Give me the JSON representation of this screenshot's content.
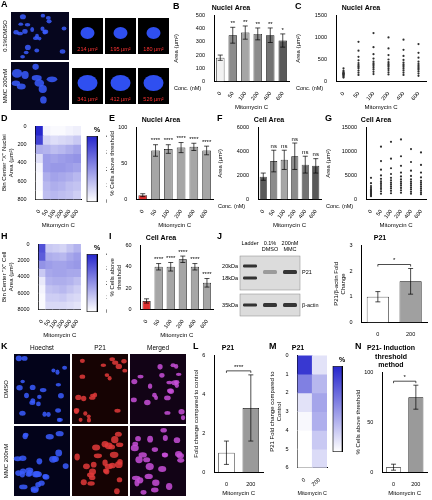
{
  "chart_data": [
    {
      "panel": "B",
      "type": "bar",
      "title": "Nuclei Area",
      "x_label": "Mitomycin C",
      "x_unit_label": "Conc. (nM)",
      "y_label": "Area (µm²)",
      "categories": [
        "0",
        "50",
        "100",
        "200",
        "400",
        "600"
      ],
      "values": [
        180,
        350,
        370,
        360,
        350,
        310
      ],
      "errors": [
        20,
        60,
        50,
        45,
        55,
        50
      ],
      "significance": [
        null,
        "**",
        "**",
        "**",
        "**",
        "*"
      ],
      "colors": [
        "#f2f2f2",
        "#8c8c8c",
        "#a6a6a6",
        "#8c8c8c",
        "#737373",
        "#595959"
      ],
      "ylim": [
        0,
        500
      ],
      "yticks": [
        0,
        100,
        200,
        300,
        400,
        500
      ],
      "grid": false
    },
    {
      "panel": "C",
      "type": "scatter",
      "title": "Nuclei Area",
      "x_label": "Mitomycin C",
      "x_unit_label": "Conc. (nM)",
      "y_label": "Area (µm²)",
      "categories": [
        "0",
        "50",
        "100",
        "200",
        "400",
        "600"
      ],
      "values": [
        [
          90,
          110,
          130,
          150,
          160,
          170,
          180,
          190,
          200,
          220,
          250,
          300
        ],
        [
          150,
          200,
          250,
          300,
          330,
          350,
          380,
          420,
          480,
          560,
          700,
          900
        ],
        [
          170,
          220,
          270,
          310,
          350,
          380,
          410,
          450,
          520,
          620,
          780,
          1100
        ],
        [
          160,
          210,
          260,
          300,
          340,
          370,
          400,
          440,
          500,
          600,
          750,
          1000
        ],
        [
          150,
          200,
          250,
          290,
          330,
          360,
          390,
          430,
          490,
          580,
          720,
          950
        ],
        [
          130,
          180,
          230,
          270,
          300,
          330,
          360,
          400,
          450,
          540,
          650,
          850
        ]
      ],
      "color": "#303030",
      "ylim": [
        0,
        1500
      ],
      "yticks": [
        0,
        500,
        1000,
        1500
      ],
      "grid": false
    },
    {
      "panel": "D",
      "type": "heatmap",
      "x_label": "Mitomycin C",
      "y_label": "Bin Center \"X\" Nuclei Area (µm²)",
      "categories": [
        "0",
        "50",
        "100",
        "200",
        "400",
        "600"
      ],
      "bins": [
        0,
        100,
        200,
        300,
        400,
        500,
        600,
        700,
        800
      ],
      "cells": [
        [
          40,
          35,
          15,
          6,
          2,
          1,
          1,
          0
        ],
        [
          2,
          8,
          14,
          18,
          18,
          15,
          13,
          12
        ],
        [
          1,
          6,
          12,
          17,
          19,
          17,
          15,
          13
        ],
        [
          1,
          7,
          13,
          18,
          19,
          16,
          14,
          12
        ],
        [
          2,
          8,
          15,
          19,
          18,
          15,
          12,
          11
        ],
        [
          3,
          10,
          17,
          20,
          17,
          13,
          11,
          9
        ]
      ],
      "ylim": [
        800,
        0
      ],
      "yticks": [
        0,
        200,
        400,
        600,
        800
      ],
      "grid": false,
      "colorbar": {
        "title": "%",
        "range": [
          0,
          40
        ],
        "ticks": [
          0,
          10,
          20,
          30,
          40
        ]
      }
    },
    {
      "panel": "E",
      "type": "bar",
      "title": "Nuclei Area",
      "x_label": "Mitomycin C",
      "y_label": "% Cells above threshold",
      "categories": [
        "0",
        "50",
        "100",
        "200",
        "400",
        "600"
      ],
      "values": [
        6,
        68,
        70,
        72,
        73,
        68
      ],
      "errors": [
        2,
        8,
        6,
        7,
        5,
        6
      ],
      "significance": [
        null,
        "****",
        "****",
        "****",
        "****",
        "****"
      ],
      "colors": [
        "#e03030",
        "#a6a6a6",
        "#a6a6a6",
        "#a6a6a6",
        "#a6a6a6",
        "#a6a6a6"
      ],
      "ylim": [
        0,
        100
      ],
      "yticks": [
        0,
        50,
        100
      ],
      "grid": false
    },
    {
      "panel": "F",
      "type": "bar",
      "title": "Cell Area",
      "x_label": "Mitomycin C",
      "x_unit_label": "Conc. (nM)",
      "y_label": "Area (µm²)",
      "categories": [
        "0",
        "50",
        "100",
        "200",
        "400",
        "600"
      ],
      "values": [
        1900,
        3200,
        3300,
        3600,
        2900,
        2800
      ],
      "errors": [
        300,
        900,
        800,
        1100,
        700,
        600
      ],
      "significance": [
        null,
        "ns",
        "ns",
        "ns",
        "ns",
        "ns"
      ],
      "colors": [
        "#595959",
        "#8c8c8c",
        "#a6a6a6",
        "#8c8c8c",
        "#737373",
        "#595959"
      ],
      "ylim": [
        0,
        6000
      ],
      "yticks": [
        0,
        2000,
        4000,
        6000
      ],
      "grid": false
    },
    {
      "panel": "G",
      "type": "scatter",
      "title": "Cell Area",
      "x_label": "Mitomycin C",
      "x_unit_label": "Conc. (nM)",
      "y_label": "Area (µm²)",
      "categories": [
        "0",
        "50",
        "100",
        "200",
        "400",
        "600"
      ],
      "values": [
        [
          700,
          900,
          1100,
          1300,
          1500,
          1700,
          1900,
          2100,
          2400,
          2800,
          3400,
          4500
        ],
        [
          1200,
          1700,
          2200,
          2600,
          3000,
          3400,
          3800,
          4300,
          5000,
          6200,
          8000,
          11000
        ],
        [
          1300,
          1800,
          2300,
          2700,
          3100,
          3500,
          4000,
          4500,
          5300,
          6500,
          8500,
          12000
        ],
        [
          1400,
          1900,
          2400,
          2900,
          3300,
          3700,
          4200,
          4800,
          5600,
          7000,
          9000,
          12500
        ],
        [
          1200,
          1600,
          2100,
          2500,
          2900,
          3300,
          3700,
          4200,
          4900,
          6000,
          7800,
          10500
        ],
        [
          1100,
          1500,
          1900,
          2300,
          2700,
          3100,
          3500,
          3900,
          4600,
          5600,
          7200,
          9800
        ]
      ],
      "color": "#303030",
      "ylim": [
        0,
        15000
      ],
      "yticks": [
        0,
        5000,
        10000,
        15000
      ],
      "grid": false
    },
    {
      "panel": "H",
      "type": "heatmap",
      "x_label": "Mitomycin C",
      "y_label": "Bin Center \"X\" Cell Area (µm²)",
      "categories": [
        "0",
        "50",
        "100",
        "200",
        "400",
        "600"
      ],
      "bins": [
        0,
        1000,
        2000,
        3000,
        4000,
        5000,
        6000,
        7000,
        8000
      ],
      "cells": [
        [
          32,
          30,
          20,
          10,
          4,
          2,
          1,
          1
        ],
        [
          10,
          15,
          18,
          16,
          14,
          11,
          9,
          7
        ],
        [
          9,
          14,
          17,
          17,
          15,
          12,
          9,
          7
        ],
        [
          8,
          13,
          17,
          17,
          15,
          13,
          10,
          7
        ],
        [
          11,
          16,
          18,
          16,
          14,
          11,
          8,
          6
        ],
        [
          14,
          18,
          19,
          16,
          12,
          9,
          7,
          5
        ]
      ],
      "ylim": [
        8000,
        0
      ],
      "yticks": [
        0,
        2000,
        4000,
        6000,
        8000
      ],
      "grid": false,
      "colorbar": {
        "title": "%",
        "range": [
          0,
          40
        ],
        "ticks": [
          0,
          10,
          20,
          30,
          40
        ]
      }
    },
    {
      "panel": "I",
      "type": "bar",
      "title": "Cell Area",
      "x_label": "Mitomycin C",
      "y_label": "% Cells above threshold",
      "categories": [
        "0",
        "50",
        "100",
        "200",
        "400",
        "600"
      ],
      "values": [
        8,
        40,
        40,
        47,
        40,
        25
      ],
      "errors": [
        2,
        3,
        4,
        3,
        3,
        4
      ],
      "significance": [
        null,
        "****",
        "****",
        "****",
        "****",
        "****"
      ],
      "colors": [
        "#e03030",
        "#a6a6a6",
        "#a6a6a6",
        "#a6a6a6",
        "#a6a6a6",
        "#a6a6a6"
      ],
      "ylim": [
        0,
        60
      ],
      "yticks": [
        0,
        20,
        40,
        60
      ],
      "grid": false
    },
    {
      "type": "bar",
      "title": "P21",
      "y_label": "P21/β-actin Fold Change",
      "categories": [
        "0",
        "200"
      ],
      "values": [
        1,
        1.6
      ],
      "errors": [
        0.2,
        0.5
      ],
      "bracket_label": "*",
      "colors": [
        "#ffffff",
        "#a0a0a0"
      ],
      "ylim": [
        0,
        3
      ],
      "yticks": [
        0,
        1,
        2,
        3
      ],
      "grid": false
    },
    {
      "panel": "L",
      "type": "bar",
      "title": "P21",
      "x_label": "Mitomycin C",
      "y_label": "Fold change compared to control",
      "categories": [
        "0",
        "200"
      ],
      "values": [
        1,
        3.3
      ],
      "errors": [
        0.6,
        1.7
      ],
      "bracket_label": "****",
      "colors": [
        "#ffffff",
        "#9a9a9a"
      ],
      "ylim": [
        0,
        6
      ],
      "yticks": [
        0,
        2,
        4,
        6
      ],
      "grid": false
    },
    {
      "panel": "M",
      "type": "heatmap",
      "title": "P21",
      "x_label": "Mitomycin C",
      "y_label": "P21 Fold change compared to Control",
      "categories": [
        "0",
        "200"
      ],
      "bins": [
        0,
        1,
        2,
        3,
        4,
        5,
        6
      ],
      "cells": [
        [
          55,
          35,
          8,
          2,
          0,
          0
        ],
        [
          8,
          20,
          25,
          22,
          15,
          10
        ]
      ],
      "ylim": [
        6,
        0
      ],
      "yticks": [
        0,
        1,
        2,
        3,
        4,
        5,
        6
      ],
      "grid": false,
      "colorbar": {
        "title": "%",
        "range": [
          0,
          60
        ],
        "ticks": [
          0,
          20,
          40,
          60
        ]
      }
    },
    {
      "panel": "N",
      "type": "bar",
      "title": "P21- Induction threshold method",
      "x_label": "Mitomycin C",
      "y_label": "% Cells above threshold",
      "categories": [
        "0",
        "200"
      ],
      "values": [
        5,
        75
      ],
      "errors": [
        3,
        12
      ],
      "bracket_label": "*",
      "colors": [
        "#ffffff",
        "#9a9a9a"
      ],
      "ylim": [
        0,
        100
      ],
      "yticks": [
        0,
        50,
        100
      ],
      "grid": false
    }
  ],
  "images": [
    {
      "panel": "A",
      "type": "micrographs",
      "rows": [
        {
          "label": "0.1%DMSO",
          "insets": [
            "214 µm²",
            "195 µm²",
            "180 µm²"
          ]
        },
        {
          "label": "MMC 200nM",
          "insets": [
            "341 µm²",
            "412 µm²",
            "526 µm²"
          ]
        }
      ]
    },
    {
      "panel": "K",
      "type": "micrographs",
      "columns": [
        "Hoechst",
        "P21",
        "Merged"
      ],
      "rows": [
        "DMSO",
        "MMC 200nM"
      ]
    }
  ],
  "blot": {
    "panel": "J",
    "lanes": [
      "Ladder",
      "0.1% DMSO",
      "200nM MMC"
    ],
    "markers": [
      "20kDa",
      "18kDa",
      "35kDa"
    ],
    "bands": [
      "P21",
      "β-actin"
    ]
  }
}
